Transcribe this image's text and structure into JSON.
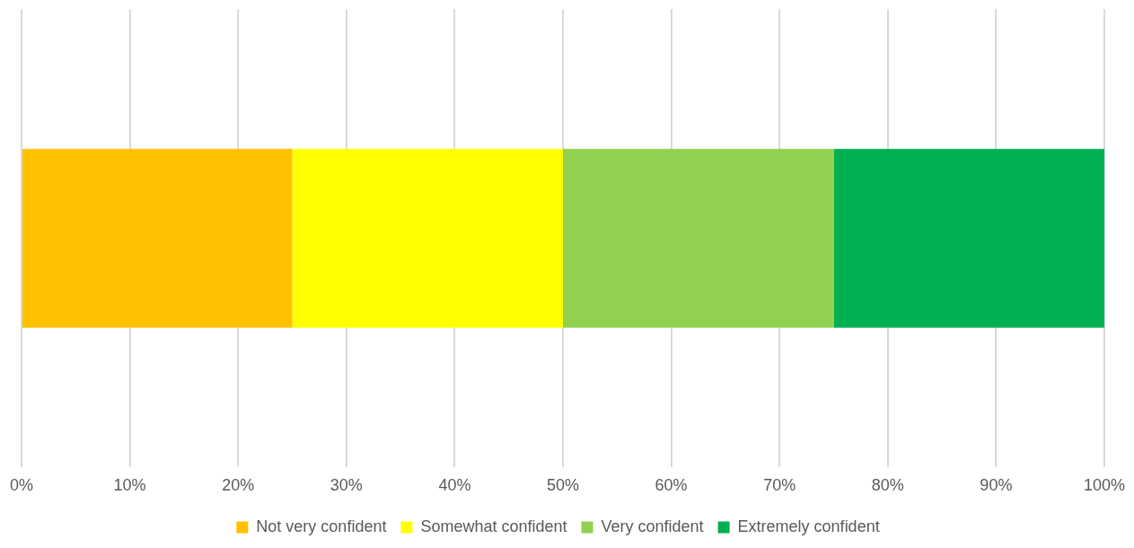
{
  "chart_data": {
    "type": "bar",
    "orientation": "horizontal",
    "stacked": true,
    "categories": [
      null
    ],
    "series": [
      {
        "name": "Not very confident",
        "color": "#ffc000",
        "values": [
          25
        ]
      },
      {
        "name": "Somewhat confident",
        "color": "#ffff00",
        "values": [
          25
        ]
      },
      {
        "name": "Very confident",
        "color": "#92d050",
        "values": [
          25
        ]
      },
      {
        "name": "Extremely confident",
        "color": "#00b050",
        "values": [
          25
        ]
      }
    ],
    "xlim": [
      0,
      100
    ],
    "xticks": [
      {
        "value": 0,
        "label": "0%"
      },
      {
        "value": 10,
        "label": "10%"
      },
      {
        "value": 20,
        "label": "20%"
      },
      {
        "value": 30,
        "label": "30%"
      },
      {
        "value": 40,
        "label": "40%"
      },
      {
        "value": 50,
        "label": "50%"
      },
      {
        "value": 60,
        "label": "60%"
      },
      {
        "value": 70,
        "label": "70%"
      },
      {
        "value": 80,
        "label": "80%"
      },
      {
        "value": 90,
        "label": "90%"
      },
      {
        "value": 100,
        "label": "100%"
      }
    ],
    "grid": "x",
    "legend": "bottom"
  }
}
